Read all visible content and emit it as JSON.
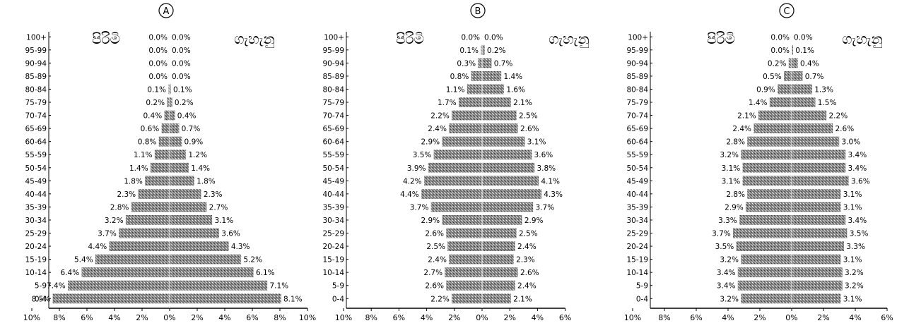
{
  "chart_data": [
    {
      "type": "bar",
      "panel_label": "A",
      "male_label": "පිරිමි",
      "female_label": "ගැහැනු",
      "categories": [
        "0-4",
        "5-9",
        "10-14",
        "15-19",
        "20-24",
        "25-29",
        "30-34",
        "35-39",
        "40-44",
        "45-49",
        "50-54",
        "55-59",
        "60-64",
        "65-69",
        "70-74",
        "75-79",
        "80-84",
        "85-89",
        "90-94",
        "95-99",
        "100+"
      ],
      "series": [
        {
          "name": "පිරිමි",
          "values": [
            8.5,
            7.4,
            6.4,
            5.4,
            4.4,
            3.7,
            3.2,
            2.8,
            2.3,
            1.8,
            1.4,
            1.1,
            0.8,
            0.6,
            0.4,
            0.2,
            0.1,
            0.0,
            0.0,
            0.0,
            0.0
          ],
          "labels": [
            "8.5%",
            "7.4%",
            "6.4%",
            "5.4%",
            "4.4%",
            "3.7%",
            "3.2%",
            "2.8%",
            "2.3%",
            "1.8%",
            "1.4%",
            "1.1%",
            "0.8%",
            "0.6%",
            "0.4%",
            "0.2%",
            "0.1%",
            "0.0%",
            "0.0%",
            "0.0%",
            "0.0%"
          ]
        },
        {
          "name": "ගැහැනු",
          "values": [
            8.1,
            7.1,
            6.1,
            5.2,
            4.3,
            3.6,
            3.1,
            2.7,
            2.3,
            1.8,
            1.4,
            1.2,
            0.9,
            0.7,
            0.4,
            0.2,
            0.1,
            0.0,
            0.0,
            0.0,
            0.0
          ],
          "labels": [
            "8.1%",
            "7.1%",
            "6.1%",
            "5.2%",
            "4.3%",
            "3.6%",
            "3.1%",
            "2.7%",
            "2.3%",
            "1.8%",
            "1.4%",
            "1.2%",
            "0.9%",
            "0.7%",
            "0.4%",
            "0.2%",
            "0.1%",
            "0.0%",
            "0.0%",
            "0.0%",
            "0.0%"
          ]
        }
      ],
      "x_ticks": [
        "10%",
        "8%",
        "6%",
        "4%",
        "2%",
        "0%",
        "2%",
        "4%",
        "6%",
        "8%",
        "10%"
      ],
      "xlim": [
        -10,
        10
      ]
    },
    {
      "type": "bar",
      "panel_label": "B",
      "male_label": "පිරිමි",
      "female_label": "ගැහැනු",
      "categories": [
        "0-4",
        "5-9",
        "10-14",
        "15-19",
        "20-24",
        "25-29",
        "30-34",
        "35-39",
        "40-44",
        "45-49",
        "50-54",
        "55-59",
        "60-64",
        "65-69",
        "70-74",
        "75-79",
        "80-84",
        "85-89",
        "90-94",
        "95-99",
        "100+"
      ],
      "series": [
        {
          "name": "පිරිමි",
          "values": [
            2.2,
            2.6,
            2.7,
            2.4,
            2.5,
            2.6,
            2.9,
            3.7,
            4.4,
            4.2,
            3.9,
            3.5,
            2.9,
            2.4,
            2.2,
            1.7,
            1.1,
            0.8,
            0.3,
            0.1,
            0.0
          ],
          "labels": [
            "2.2%",
            "2.6%",
            "2.7%",
            "2.4%",
            "2.5%",
            "2.6%",
            "2.9%",
            "3.7%",
            "4.4%",
            "4.2%",
            "3.9%",
            "3.5%",
            "2.9%",
            "2.4%",
            "2.2%",
            "1.7%",
            "1.1%",
            "0.8%",
            "0.3%",
            "0.1%",
            "0.0%"
          ]
        },
        {
          "name": "ගැහැනු",
          "values": [
            2.1,
            2.4,
            2.6,
            2.3,
            2.4,
            2.5,
            2.9,
            3.7,
            4.3,
            4.1,
            3.8,
            3.6,
            3.1,
            2.6,
            2.5,
            2.1,
            1.6,
            1.4,
            0.7,
            0.2,
            0.0
          ],
          "labels": [
            "2.1%",
            "2.4%",
            "2.6%",
            "2.3%",
            "2.4%",
            "2.5%",
            "2.9%",
            "3.7%",
            "4.3%",
            "4.1%",
            "3.8%",
            "3.6%",
            "3.1%",
            "2.6%",
            "2.5%",
            "2.1%",
            "1.6%",
            "1.4%",
            "0.7%",
            "0.2%",
            "0.0%"
          ]
        }
      ],
      "x_ticks": [
        "10%",
        "8%",
        "6%",
        "4%",
        "2%",
        "0%",
        "2%",
        "4%",
        "6%"
      ],
      "xlim": [
        -10,
        6
      ]
    },
    {
      "type": "bar",
      "panel_label": "C",
      "male_label": "පිරිමි",
      "female_label": "ගැහැනු",
      "categories": [
        "0-4",
        "5-9",
        "10-14",
        "15-19",
        "20-24",
        "25-29",
        "30-34",
        "35-39",
        "40-44",
        "45-49",
        "50-54",
        "55-59",
        "60-64",
        "65-69",
        "70-74",
        "75-79",
        "80-84",
        "85-89",
        "90-94",
        "95-99",
        "100+"
      ],
      "series": [
        {
          "name": "පිරිමි",
          "values": [
            3.2,
            3.4,
            3.4,
            3.2,
            3.5,
            3.7,
            3.3,
            2.9,
            2.8,
            3.1,
            3.1,
            3.2,
            2.8,
            2.4,
            2.1,
            1.4,
            0.9,
            0.5,
            0.2,
            0.0,
            0.0
          ],
          "labels": [
            "3.2%",
            "3.4%",
            "3.4%",
            "3.2%",
            "3.5%",
            "3.7%",
            "3.3%",
            "2.9%",
            "2.8%",
            "3.1%",
            "3.1%",
            "3.2%",
            "2.8%",
            "2.4%",
            "2.1%",
            "1.4%",
            "0.9%",
            "0.5%",
            "0.2%",
            "0.0%",
            "0.0%"
          ]
        },
        {
          "name": "ගැහැනු",
          "values": [
            3.1,
            3.2,
            3.2,
            3.1,
            3.3,
            3.5,
            3.4,
            3.1,
            3.1,
            3.6,
            3.4,
            3.4,
            3.0,
            2.6,
            2.2,
            1.5,
            1.3,
            0.7,
            0.4,
            0.1,
            0.0
          ],
          "labels": [
            "3.1%",
            "3.2%",
            "3.2%",
            "3.1%",
            "3.3%",
            "3.5%",
            "3.4%",
            "3.1%",
            "3.1%",
            "3.6%",
            "3.4%",
            "3.4%",
            "3.0%",
            "2.6%",
            "2.2%",
            "1.5%",
            "1.3%",
            "0.7%",
            "0.4%",
            "0.1%",
            "0.0%"
          ]
        }
      ],
      "x_ticks": [
        "10%",
        "8%",
        "6%",
        "4%",
        "2%",
        "0%",
        "2%",
        "4%",
        "6%"
      ],
      "xlim": [
        -10,
        6
      ]
    }
  ]
}
